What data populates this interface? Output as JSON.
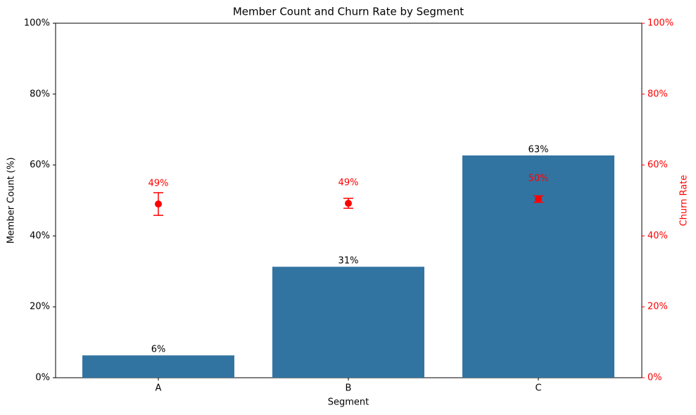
{
  "chart_data": {
    "type": "bar",
    "title": "Member Count and Churn Rate by Segment",
    "x_label": "Segment",
    "y_label": "Member Count (%)",
    "y2_label": "Churn Rate",
    "categories": [
      "A",
      "B",
      "C"
    ],
    "series": [
      {
        "type": "bar",
        "color": "#3274a1",
        "values": [
          6.3,
          31.3,
          62.7
        ],
        "value_labels": [
          "6%",
          "31%",
          "63%"
        ]
      },
      {
        "type": "errorbar",
        "axis": "y2",
        "color": "#ff0000",
        "values": [
          49.0,
          49.2,
          50.4
        ],
        "errors": [
          3.2,
          1.4,
          0.9
        ],
        "value_labels": [
          "49%",
          "49%",
          "50%"
        ]
      }
    ],
    "ylim": [
      0,
      100
    ],
    "yticks": [
      {
        "value": 0,
        "label": "0%"
      },
      {
        "value": 20,
        "label": "20%"
      },
      {
        "value": 40,
        "label": "40%"
      },
      {
        "value": 60,
        "label": "60%"
      },
      {
        "value": 80,
        "label": "80%"
      },
      {
        "value": 100,
        "label": "100%"
      }
    ],
    "y2lim": [
      0,
      100
    ],
    "y2ticks": [
      {
        "value": 0,
        "label": "0%"
      },
      {
        "value": 20,
        "label": "20%"
      },
      {
        "value": 40,
        "label": "40%"
      },
      {
        "value": 60,
        "label": "60%"
      },
      {
        "value": 80,
        "label": "80%"
      },
      {
        "value": 100,
        "label": "100%"
      }
    ],
    "y2_color": "#ff0000",
    "grid": false
  }
}
